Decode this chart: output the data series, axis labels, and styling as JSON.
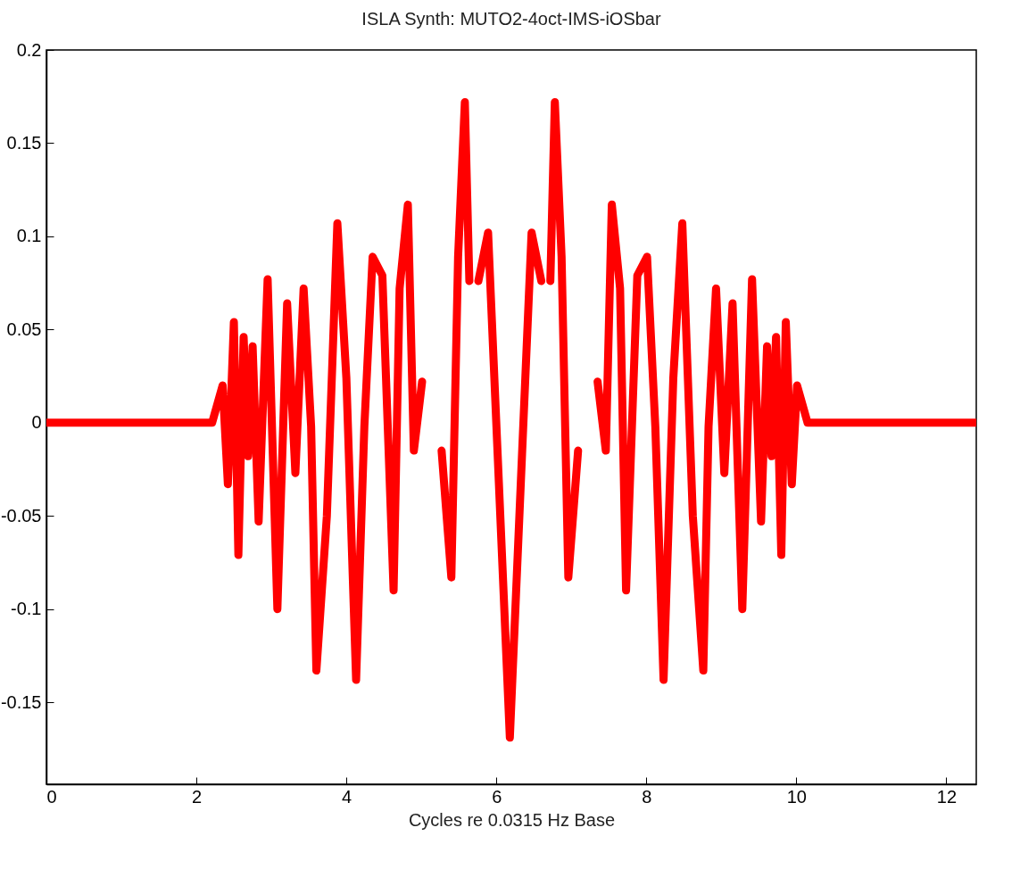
{
  "chart_data": {
    "type": "line",
    "title": "ISLA Synth: MUTO2-4oct-IMS-iOSbar",
    "xlabel": "Cycles re 0.0315 Hz Base",
    "xlim": [
      0,
      12.4
    ],
    "ylim": [
      -0.194,
      0.2
    ],
    "xticks": [
      0,
      2,
      4,
      6,
      8,
      10,
      12
    ],
    "yticks": [
      -0.15,
      -0.1,
      -0.05,
      0,
      0.05,
      0.1,
      0.15,
      0.2
    ],
    "grid": false,
    "marker": "none",
    "line_style": "solid",
    "series": [
      {
        "color": "#ff0000",
        "x": [
          0,
          2.21,
          2.35,
          2.42,
          2.5,
          2.56,
          2.63,
          2.69,
          2.75,
          2.83,
          2.95,
          3.08,
          3.21,
          3.32,
          3.43,
          3.53,
          3.6,
          3.74,
          3.88,
          4.0,
          4.13,
          4.24,
          4.35,
          4.48,
          4.63,
          4.71,
          4.82,
          4.9,
          5.01,
          5.14,
          5.27,
          5.4,
          5.49,
          5.58,
          5.64,
          5.73,
          5.76,
          5.89,
          6.18,
          6.47,
          6.6,
          6.63,
          6.72,
          6.78,
          6.87,
          6.96,
          7.09,
          7.22,
          7.35,
          7.46,
          7.54,
          7.65,
          7.73,
          7.88,
          8.01,
          8.12,
          8.23,
          8.36,
          8.48,
          8.62,
          8.76,
          8.83,
          8.93,
          9.04,
          9.15,
          9.28,
          9.41,
          9.53,
          9.61,
          9.67,
          9.73,
          9.8,
          9.86,
          9.94,
          10.01,
          10.15,
          12.4
        ],
        "values": [
          0,
          0,
          0.02,
          -0.033,
          0.054,
          -0.071,
          0.046,
          -0.018,
          0.041,
          -0.053,
          0.077,
          -0.1,
          0.064,
          -0.027,
          0.072,
          -0.002,
          -0.133,
          -0.05,
          0.107,
          0.024,
          -0.138,
          -0.002,
          0.089,
          0.079,
          -0.09,
          0.072,
          0.117,
          -0.015,
          0.022,
          null,
          -0.015,
          -0.083,
          0.089,
          0.172,
          0.076,
          null,
          0.076,
          0.102,
          -0.169,
          0.102,
          0.076,
          null,
          0.076,
          0.172,
          0.089,
          -0.083,
          -0.015,
          null,
          0.022,
          -0.015,
          0.117,
          0.072,
          -0.09,
          0.079,
          0.089,
          -0.002,
          -0.138,
          0.024,
          0.107,
          -0.05,
          -0.133,
          -0.002,
          0.072,
          -0.027,
          0.064,
          -0.1,
          0.077,
          -0.053,
          0.041,
          -0.018,
          0.046,
          -0.071,
          0.054,
          -0.033,
          0.02,
          0,
          0
        ]
      }
    ]
  }
}
